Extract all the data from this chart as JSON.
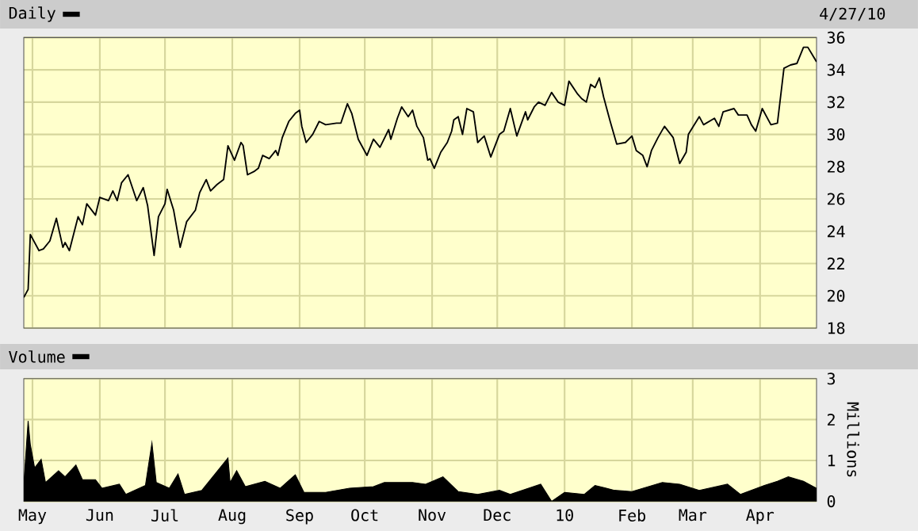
{
  "chart_data": [
    {
      "type": "line",
      "title": "Daily",
      "annotations": [
        "4/27/10"
      ],
      "grid": true,
      "tick_labels": "y",
      "line_style": "solid",
      "xlim": [
        "2009-04-27",
        "2010-04-27"
      ],
      "ylim": [
        18,
        36
      ],
      "yticks": [
        18,
        20,
        22,
        24,
        26,
        28,
        30,
        32,
        34,
        36
      ],
      "xticks": [
        {
          "value": "2009-05-01",
          "label": null
        },
        {
          "value": "2009-06-01",
          "label": null
        },
        {
          "value": "2009-07-01",
          "label": null
        },
        {
          "value": "2009-08-01",
          "label": null
        },
        {
          "value": "2009-09-01",
          "label": null
        },
        {
          "value": "2009-10-01",
          "label": null
        },
        {
          "value": "2009-11-01",
          "label": null
        },
        {
          "value": "2009-12-01",
          "label": null
        },
        {
          "value": "2010-01-01",
          "label": null
        },
        {
          "value": "2010-02-01",
          "label": null
        },
        {
          "value": "2010-03-01",
          "label": null
        },
        {
          "value": "2010-04-01",
          "label": null
        }
      ],
      "series": [
        {
          "color": "#000000",
          "x": [
            "2009-04-27",
            "2009-04-29",
            "2009-04-30",
            "2009-05-04",
            "2009-05-06",
            "2009-05-09",
            "2009-05-12",
            "2009-05-15",
            "2009-05-16",
            "2009-05-18",
            "2009-05-22",
            "2009-05-24",
            "2009-05-26",
            "2009-05-30",
            "2009-06-01",
            "2009-06-05",
            "2009-06-07",
            "2009-06-09",
            "2009-06-11",
            "2009-06-14",
            "2009-06-16",
            "2009-06-18",
            "2009-06-21",
            "2009-06-23",
            "2009-06-26",
            "2009-06-28",
            "2009-07-01",
            "2009-07-02",
            "2009-07-05",
            "2009-07-08",
            "2009-07-11",
            "2009-07-15",
            "2009-07-17",
            "2009-07-20",
            "2009-07-22",
            "2009-07-25",
            "2009-07-28",
            "2009-07-30",
            "2009-08-01",
            "2009-08-02",
            "2009-08-05",
            "2009-08-06",
            "2009-08-08",
            "2009-08-11",
            "2009-08-13",
            "2009-08-15",
            "2009-08-18",
            "2009-08-21",
            "2009-08-22",
            "2009-08-24",
            "2009-08-27",
            "2009-08-30",
            "2009-09-01",
            "2009-09-02",
            "2009-09-04",
            "2009-09-07",
            "2009-09-10",
            "2009-09-13",
            "2009-09-18",
            "2009-09-20",
            "2009-09-23",
            "2009-09-25",
            "2009-09-28",
            "2009-10-02",
            "2009-10-05",
            "2009-10-08",
            "2009-10-12",
            "2009-10-13",
            "2009-10-16",
            "2009-10-18",
            "2009-10-21",
            "2009-10-23",
            "2009-10-25",
            "2009-10-28",
            "2009-10-30",
            "2009-10-31",
            "2009-11-02",
            "2009-11-05",
            "2009-11-08",
            "2009-11-10",
            "2009-11-11",
            "2009-11-13",
            "2009-11-15",
            "2009-11-17",
            "2009-11-20",
            "2009-11-22",
            "2009-11-25",
            "2009-11-28",
            "2009-12-02",
            "2009-12-04",
            "2009-12-07",
            "2009-12-10",
            "2009-12-14",
            "2009-12-15",
            "2009-12-18",
            "2009-12-20",
            "2009-12-23",
            "2009-12-26",
            "2009-12-29",
            "2010-01-01",
            "2010-01-03",
            "2010-01-07",
            "2010-01-09",
            "2010-01-11",
            "2010-01-13",
            "2010-01-15",
            "2010-01-17",
            "2010-01-19",
            "2010-01-22",
            "2010-01-25",
            "2010-01-29",
            "2010-02-01",
            "2010-02-03",
            "2010-02-06",
            "2010-02-08",
            "2010-02-10",
            "2010-02-13",
            "2010-02-16",
            "2010-02-20",
            "2010-02-23",
            "2010-02-26",
            "2010-02-27",
            "2010-03-04",
            "2010-03-06",
            "2010-03-11",
            "2010-03-13",
            "2010-03-15",
            "2010-03-20",
            "2010-03-22",
            "2010-03-26",
            "2010-03-28",
            "2010-03-30",
            "2010-04-02",
            "2010-04-06",
            "2010-04-09",
            "2010-04-12",
            "2010-04-15",
            "2010-04-18",
            "2010-04-21",
            "2010-04-23",
            "2010-04-27"
          ],
          "values": [
            19.9,
            20.4,
            23.8,
            22.8,
            22.9,
            23.4,
            24.8,
            23.0,
            23.3,
            22.8,
            24.9,
            24.4,
            25.7,
            25.0,
            26.1,
            25.9,
            26.5,
            25.9,
            27.0,
            27.5,
            26.7,
            25.9,
            26.7,
            25.6,
            22.5,
            24.9,
            25.7,
            26.6,
            25.3,
            23.0,
            24.6,
            25.3,
            26.4,
            27.2,
            26.5,
            26.9,
            27.2,
            29.3,
            28.7,
            28.4,
            29.5,
            29.3,
            27.5,
            27.7,
            27.9,
            28.7,
            28.5,
            29.0,
            28.7,
            29.8,
            30.8,
            31.3,
            31.5,
            30.5,
            29.5,
            30.0,
            30.8,
            30.6,
            30.7,
            30.7,
            31.9,
            31.3,
            29.7,
            28.7,
            29.7,
            29.2,
            30.3,
            29.7,
            31.0,
            31.7,
            31.1,
            31.5,
            30.5,
            29.8,
            28.4,
            28.5,
            27.9,
            28.9,
            29.5,
            30.2,
            30.9,
            31.1,
            30.0,
            31.6,
            31.4,
            29.5,
            29.9,
            28.6,
            30.0,
            30.2,
            31.6,
            29.9,
            31.4,
            30.9,
            31.7,
            32.0,
            31.8,
            32.6,
            32.0,
            31.8,
            33.3,
            32.5,
            32.2,
            32.0,
            33.1,
            32.9,
            33.5,
            32.3,
            30.8,
            29.4,
            29.5,
            29.9,
            29.0,
            28.7,
            28.0,
            29.0,
            29.8,
            30.5,
            29.8,
            28.2,
            28.9,
            30.0,
            31.1,
            30.6,
            31.0,
            30.5,
            31.4,
            31.6,
            31.2,
            31.2,
            30.6,
            30.2,
            31.6,
            30.6,
            30.7,
            34.1,
            34.3,
            34.4,
            35.4,
            35.4,
            34.5
          ]
        }
      ]
    },
    {
      "type": "area",
      "title": "Volume",
      "ylabel": "Millions",
      "grid": true,
      "xlim": [
        "2009-04-27",
        "2010-04-27"
      ],
      "ylim": [
        0,
        3
      ],
      "yticks": [
        0,
        1,
        2,
        3
      ],
      "xticks": [
        {
          "value": "2009-05-01",
          "label": "May"
        },
        {
          "value": "2009-06-01",
          "label": "Jun"
        },
        {
          "value": "2009-07-01",
          "label": "Jul"
        },
        {
          "value": "2009-08-01",
          "label": "Aug"
        },
        {
          "value": "2009-09-01",
          "label": "Sep"
        },
        {
          "value": "2009-10-01",
          "label": "Oct"
        },
        {
          "value": "2009-11-01",
          "label": "Nov"
        },
        {
          "value": "2009-12-01",
          "label": "Dec"
        },
        {
          "value": "2010-01-01",
          "label": "10"
        },
        {
          "value": "2010-02-01",
          "label": "Feb"
        },
        {
          "value": "2010-03-01",
          "label": "Mar"
        },
        {
          "value": "2010-04-01",
          "label": "Apr"
        }
      ],
      "series": [
        {
          "color": "#000000",
          "x": [
            "2009-04-27",
            "2009-04-29",
            "2009-04-30",
            "2009-05-02",
            "2009-05-05",
            "2009-05-07",
            "2009-05-13",
            "2009-05-16",
            "2009-05-21",
            "2009-05-24",
            "2009-05-30",
            "2009-06-02",
            "2009-06-10",
            "2009-06-13",
            "2009-06-22",
            "2009-06-25",
            "2009-06-27",
            "2009-07-03",
            "2009-07-07",
            "2009-07-10",
            "2009-07-18",
            "2009-07-30",
            "2009-07-31",
            "2009-08-03",
            "2009-08-07",
            "2009-08-16",
            "2009-08-23",
            "2009-08-30",
            "2009-09-03",
            "2009-09-13",
            "2009-09-24",
            "2009-10-05",
            "2009-10-10",
            "2009-10-23",
            "2009-10-29",
            "2009-11-06",
            "2009-11-13",
            "2009-11-22",
            "2009-12-02",
            "2009-12-07",
            "2009-12-21",
            "2009-12-26",
            "2010-01-01",
            "2010-01-10",
            "2010-01-15",
            "2010-01-24",
            "2010-02-01",
            "2010-02-15",
            "2010-02-23",
            "2010-03-04",
            "2010-03-17",
            "2010-03-23",
            "2010-04-03",
            "2010-04-09",
            "2010-04-14",
            "2010-04-21",
            "2010-04-27"
          ],
          "values": [
            0.42,
            1.97,
            1.39,
            0.82,
            1.03,
            0.46,
            0.75,
            0.6,
            0.89,
            0.53,
            0.53,
            0.32,
            0.42,
            0.17,
            0.39,
            1.43,
            0.46,
            0.32,
            0.67,
            0.17,
            0.27,
            1.06,
            0.46,
            0.75,
            0.36,
            0.49,
            0.32,
            0.65,
            0.22,
            0.22,
            0.32,
            0.36,
            0.46,
            0.46,
            0.42,
            0.6,
            0.24,
            0.17,
            0.27,
            0.17,
            0.42,
            0.0,
            0.22,
            0.17,
            0.39,
            0.27,
            0.24,
            0.46,
            0.42,
            0.27,
            0.42,
            0.17,
            0.39,
            0.49,
            0.6,
            0.49,
            0.32
          ]
        }
      ]
    }
  ]
}
